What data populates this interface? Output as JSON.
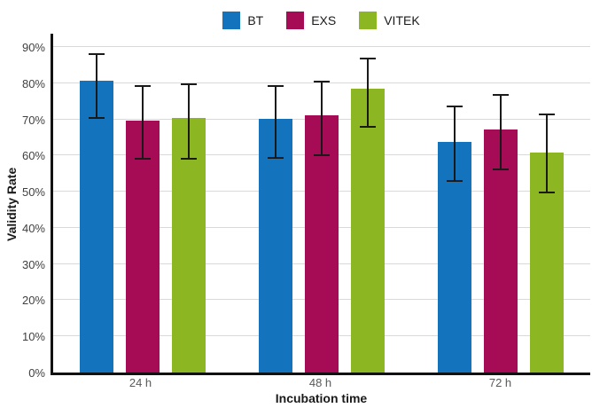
{
  "chart_data": {
    "type": "bar",
    "title": "",
    "xlabel": "Incubation time",
    "ylabel": "Validity Rate",
    "categories": [
      "24 h",
      "48 h",
      "72 h"
    ],
    "series": [
      {
        "name": "BT",
        "color": "#1373BD",
        "values": [
          80.6,
          70.2,
          63.7
        ],
        "error_low": [
          70.5,
          59.4,
          53.0
        ],
        "error_high": [
          88.0,
          79.3,
          73.7
        ]
      },
      {
        "name": "EXS",
        "color": "#A60C56",
        "values": [
          69.7,
          71.2,
          67.2
        ],
        "error_low": [
          59.0,
          60.2,
          56.2
        ],
        "error_high": [
          79.2,
          80.4,
          76.8
        ]
      },
      {
        "name": "VITEK",
        "color": "#8DB722",
        "values": [
          70.3,
          78.6,
          60.8
        ],
        "error_low": [
          59.2,
          68.0,
          49.7
        ],
        "error_high": [
          79.8,
          86.8,
          71.5
        ]
      }
    ],
    "y_axis": {
      "min": 0,
      "max": 93.7,
      "tick_step": 10,
      "tick_labels": [
        "0%",
        "10%",
        "20%",
        "30%",
        "40%",
        "50%",
        "60%",
        "70%",
        "80%",
        "90%"
      ]
    },
    "grid": true,
    "legend_position": "top-center",
    "style": {
      "background": "#ffffff",
      "gridline_color": "#d9d9d9",
      "axis_color": "#111111",
      "error_bar_color": "#1a1a1a",
      "tick_label_color": "#404040",
      "category_label_color": "#595959"
    }
  }
}
